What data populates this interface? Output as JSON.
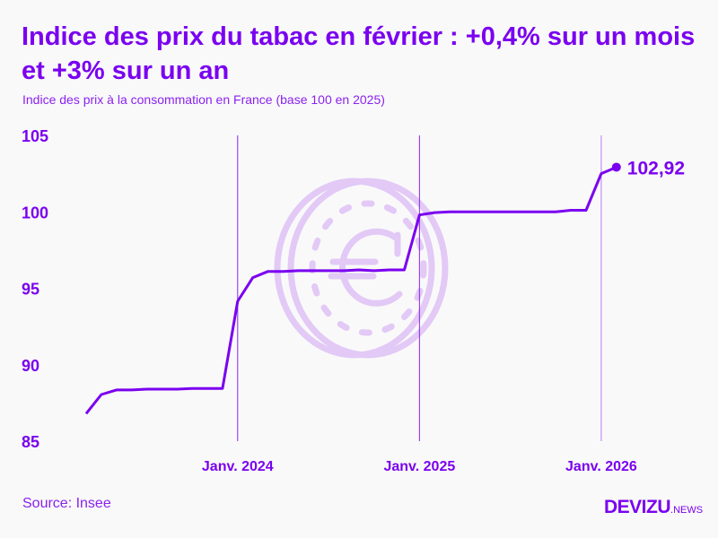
{
  "colors": {
    "accent": "#7a00f0",
    "watermark": "#e2c9f6",
    "background": "#f9f9f9"
  },
  "watermark_icon": "euro-coin-icon",
  "chart_data": {
    "type": "line",
    "title": "Indice des prix du tabac en février : +0,4% sur un mois et +3% sur un an",
    "subtitle": "Indice des prix à la consommation en France (base 100 en 2025)",
    "xlabel": "",
    "ylabel": "",
    "ylim": [
      85,
      105
    ],
    "yticks": [
      "85",
      "90",
      "95",
      "100",
      "105"
    ],
    "ytick_values": [
      85,
      90,
      95,
      100,
      105
    ],
    "xticks": [
      {
        "label": "Janv. 2024",
        "x": "2024-01"
      },
      {
        "label": "Janv. 2025",
        "x": "2025-01"
      },
      {
        "label": "Janv. 2026",
        "x": "2026-01"
      }
    ],
    "grid": "vertical lines at January",
    "x": [
      "2023-03",
      "2023-04",
      "2023-05",
      "2023-06",
      "2023-07",
      "2023-08",
      "2023-09",
      "2023-10",
      "2023-11",
      "2023-12",
      "2024-01",
      "2024-02",
      "2024-03",
      "2024-04",
      "2024-05",
      "2024-06",
      "2024-07",
      "2024-08",
      "2024-09",
      "2024-10",
      "2024-11",
      "2024-12",
      "2025-01",
      "2025-02",
      "2025-03",
      "2025-04",
      "2025-05",
      "2025-06",
      "2025-07",
      "2025-08",
      "2025-09",
      "2025-10",
      "2025-11",
      "2025-12",
      "2026-01",
      "2026-02"
    ],
    "values": [
      86.8,
      88.05,
      88.35,
      88.35,
      88.4,
      88.4,
      88.4,
      88.45,
      88.45,
      88.45,
      94.15,
      95.7,
      96.1,
      96.1,
      96.15,
      96.15,
      96.15,
      96.15,
      96.2,
      96.15,
      96.2,
      96.2,
      99.8,
      99.95,
      100.0,
      100.0,
      100.0,
      100.0,
      100.0,
      100.0,
      100.0,
      100.0,
      100.1,
      100.1,
      102.5,
      102.92
    ],
    "last_label": "102,92"
  },
  "footer": {
    "source": "Source: Insee",
    "logo_main": "DEVIZU",
    "logo_suffix": ".NEWS"
  }
}
